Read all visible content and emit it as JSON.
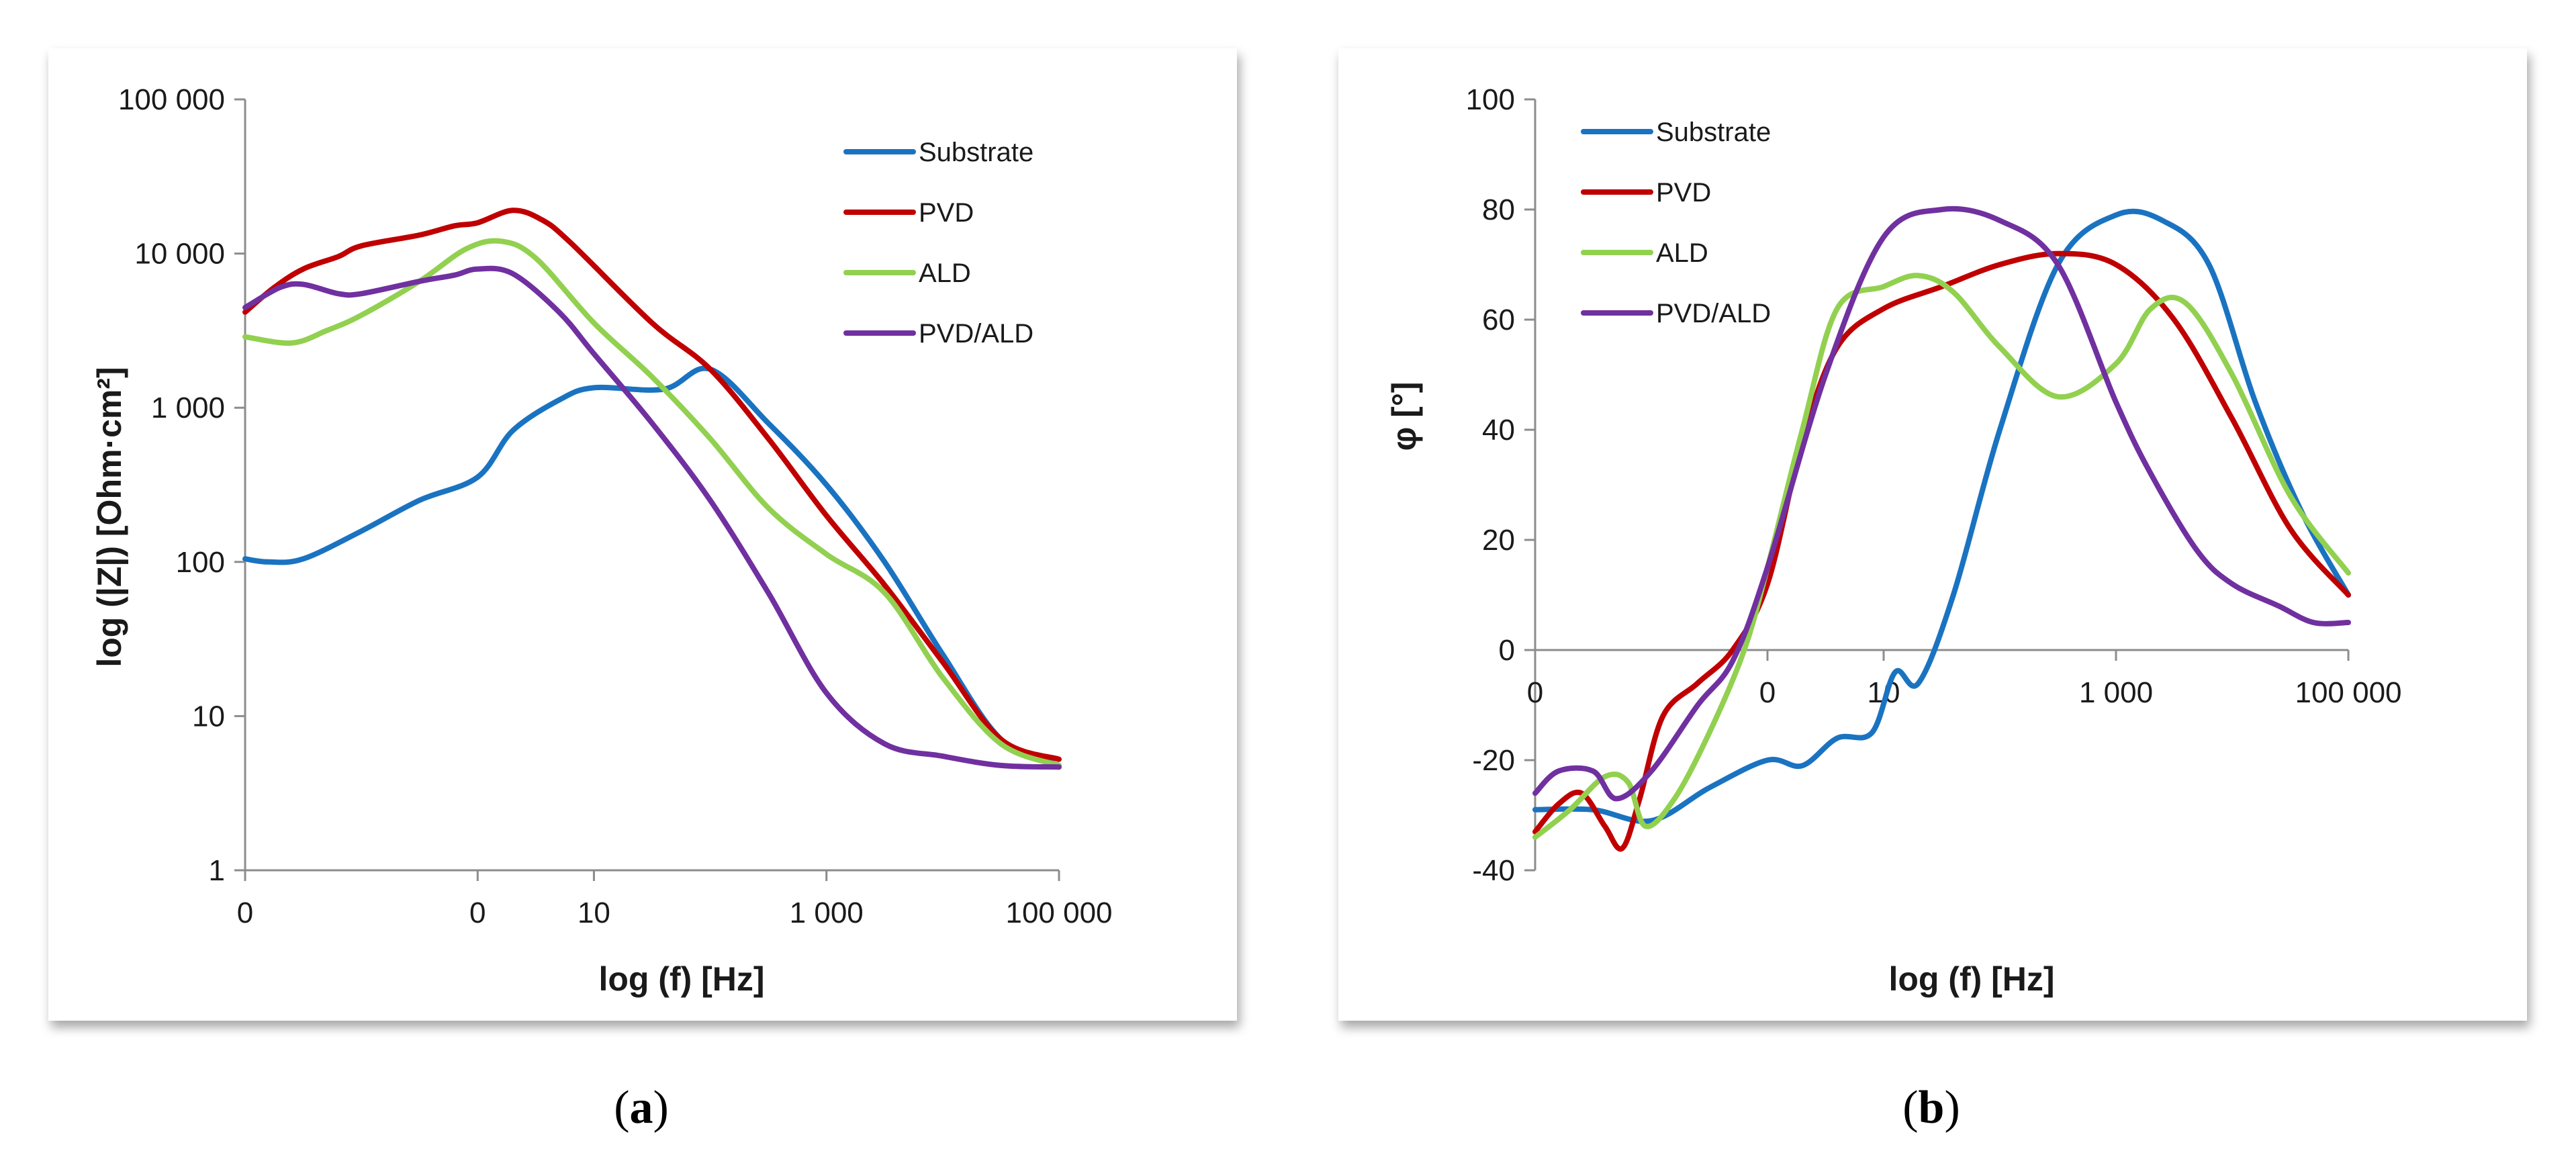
{
  "captions": {
    "a_letter": "a",
    "b_letter": "b"
  },
  "chart_data": [
    {
      "id": "a",
      "type": "line",
      "title": "",
      "xlabel": "log (f) [Hz]",
      "ylabel": "log (|Z|) [Ohm·cm²]",
      "x_scale": "log10",
      "y_scale": "log10",
      "xlim_log10": [
        -2,
        5
      ],
      "ylim_log10": [
        0,
        5
      ],
      "x_ticks": [
        {
          "v": -2,
          "label": "0"
        },
        {
          "v": 0,
          "label": "0"
        },
        {
          "v": 1,
          "label": "10"
        },
        {
          "v": 3,
          "label": "1 000"
        },
        {
          "v": 5,
          "label": "100 000"
        }
      ],
      "y_ticks": [
        {
          "v": 0,
          "label": "1"
        },
        {
          "v": 1,
          "label": "10"
        },
        {
          "v": 2,
          "label": "100"
        },
        {
          "v": 3,
          "label": "1 000"
        },
        {
          "v": 4,
          "label": "10 000"
        },
        {
          "v": 5,
          "label": "100 000"
        }
      ],
      "legend_position": "top-right",
      "series": [
        {
          "name": "Substrate",
          "color": "#1a73c1",
          "x": [
            -2,
            -1.8,
            -1.5,
            -1.0,
            -0.5,
            0,
            0.3,
            0.7,
            1.0,
            1.6,
            2.0,
            2.5,
            3.0,
            3.5,
            4.0,
            4.5,
            5.0
          ],
          "y": [
            2.02,
            2.0,
            2.02,
            2.2,
            2.4,
            2.55,
            2.85,
            3.05,
            3.13,
            3.12,
            3.25,
            2.9,
            2.5,
            2.0,
            1.4,
            0.85,
            0.68
          ]
        },
        {
          "name": "PVD",
          "color": "#c00000",
          "x": [
            -2,
            -1.75,
            -1.5,
            -1.2,
            -1.0,
            -0.5,
            -0.2,
            0,
            0.3,
            0.55,
            0.8,
            1.5,
            2.0,
            2.5,
            3.0,
            3.5,
            4.0,
            4.5,
            5.0
          ],
          "y": [
            3.62,
            3.78,
            3.9,
            3.98,
            4.05,
            4.12,
            4.18,
            4.2,
            4.28,
            4.22,
            4.07,
            3.55,
            3.25,
            2.8,
            2.3,
            1.85,
            1.35,
            0.85,
            0.72
          ]
        },
        {
          "name": "ALD",
          "color": "#92d050",
          "x": [
            -2,
            -1.6,
            -1.3,
            -1.0,
            -0.5,
            -0.1,
            0.2,
            0.5,
            1.0,
            1.5,
            2.0,
            2.5,
            3.0,
            3.5,
            4.0,
            4.5,
            5.0
          ],
          "y": [
            3.46,
            3.42,
            3.5,
            3.6,
            3.82,
            4.03,
            4.08,
            3.97,
            3.55,
            3.2,
            2.8,
            2.35,
            2.05,
            1.8,
            1.25,
            0.82,
            0.68
          ]
        },
        {
          "name": "PVD/ALD",
          "color": "#7030a0",
          "x": [
            -2,
            -1.7,
            -1.5,
            -1.2,
            -1.0,
            -0.5,
            -0.2,
            0,
            0.3,
            0.7,
            1.0,
            1.5,
            2.0,
            2.5,
            3.0,
            3.5,
            4.0,
            4.5,
            5.0
          ],
          "y": [
            3.65,
            3.78,
            3.8,
            3.74,
            3.74,
            3.82,
            3.86,
            3.9,
            3.87,
            3.62,
            3.35,
            2.9,
            2.4,
            1.8,
            1.15,
            0.82,
            0.74,
            0.68,
            0.67
          ]
        }
      ]
    },
    {
      "id": "b",
      "type": "line",
      "title": "",
      "xlabel": "log (f) [Hz]",
      "ylabel": "φ [°]",
      "x_scale": "log10",
      "xlim_log10": [
        -2,
        5
      ],
      "ylim": [
        -40,
        100
      ],
      "x_ticks": [
        {
          "v": -2,
          "label": "0"
        },
        {
          "v": 0,
          "label": "0"
        },
        {
          "v": 1,
          "label": "10"
        },
        {
          "v": 3,
          "label": "1 000"
        },
        {
          "v": 5,
          "label": "100 000"
        }
      ],
      "y_ticks": [
        {
          "v": -40,
          "label": "-40"
        },
        {
          "v": -20,
          "label": "-20"
        },
        {
          "v": 0,
          "label": "0"
        },
        {
          "v": 20,
          "label": "20"
        },
        {
          "v": 40,
          "label": "40"
        },
        {
          "v": 60,
          "label": "60"
        },
        {
          "v": 80,
          "label": "80"
        },
        {
          "v": 100,
          "label": "100"
        }
      ],
      "legend_position": "top-left",
      "series": [
        {
          "name": "Substrate",
          "color": "#1a73c1",
          "x": [
            -2,
            -1.5,
            -1.0,
            -0.5,
            0,
            0.3,
            0.6,
            0.9,
            1.1,
            1.3,
            1.6,
            2.0,
            2.5,
            3.0,
            3.4,
            3.8,
            4.2,
            4.6,
            5.0
          ],
          "y": [
            -29,
            -29,
            -31,
            -25,
            -20,
            -21,
            -16,
            -15,
            -4,
            -6,
            10,
            40,
            70,
            79,
            78,
            70,
            45,
            25,
            10
          ]
        },
        {
          "name": "PVD",
          "color": "#c00000",
          "x": [
            -2,
            -1.8,
            -1.6,
            -1.4,
            -1.25,
            -1.1,
            -0.9,
            -0.6,
            -0.3,
            0,
            0.3,
            0.6,
            1.0,
            1.5,
            2.0,
            2.5,
            3.0,
            3.5,
            4.0,
            4.5,
            5.0
          ],
          "y": [
            -33,
            -28,
            -26,
            -32,
            -36,
            -27,
            -12,
            -6,
            0,
            12,
            38,
            55,
            62,
            66,
            70,
            72,
            70,
            60,
            42,
            22,
            10
          ]
        },
        {
          "name": "ALD",
          "color": "#92d050",
          "x": [
            -2,
            -1.7,
            -1.4,
            -1.2,
            -1.05,
            -0.8,
            -0.5,
            -0.2,
            0,
            0.3,
            0.6,
            1.0,
            1.3,
            1.6,
            2.0,
            2.5,
            3.0,
            3.3,
            3.6,
            4.0,
            4.5,
            5.0
          ],
          "y": [
            -34,
            -29,
            -23,
            -24,
            -32,
            -27,
            -15,
            0,
            15,
            40,
            62,
            66,
            68,
            65,
            55,
            46,
            52,
            62,
            63,
            50,
            28,
            14
          ]
        },
        {
          "name": "PVD/ALD",
          "color": "#7030a0",
          "x": [
            -2,
            -1.8,
            -1.5,
            -1.3,
            -1.0,
            -0.6,
            -0.3,
            0,
            0.5,
            1.0,
            1.5,
            2.0,
            2.5,
            3.0,
            3.3,
            3.7,
            4.0,
            4.4,
            4.7,
            5.0
          ],
          "y": [
            -26,
            -22,
            -22,
            -27,
            -22,
            -10,
            -2,
            15,
            50,
            75,
            80,
            78,
            70,
            45,
            32,
            18,
            12,
            8,
            5,
            5
          ]
        }
      ]
    }
  ]
}
